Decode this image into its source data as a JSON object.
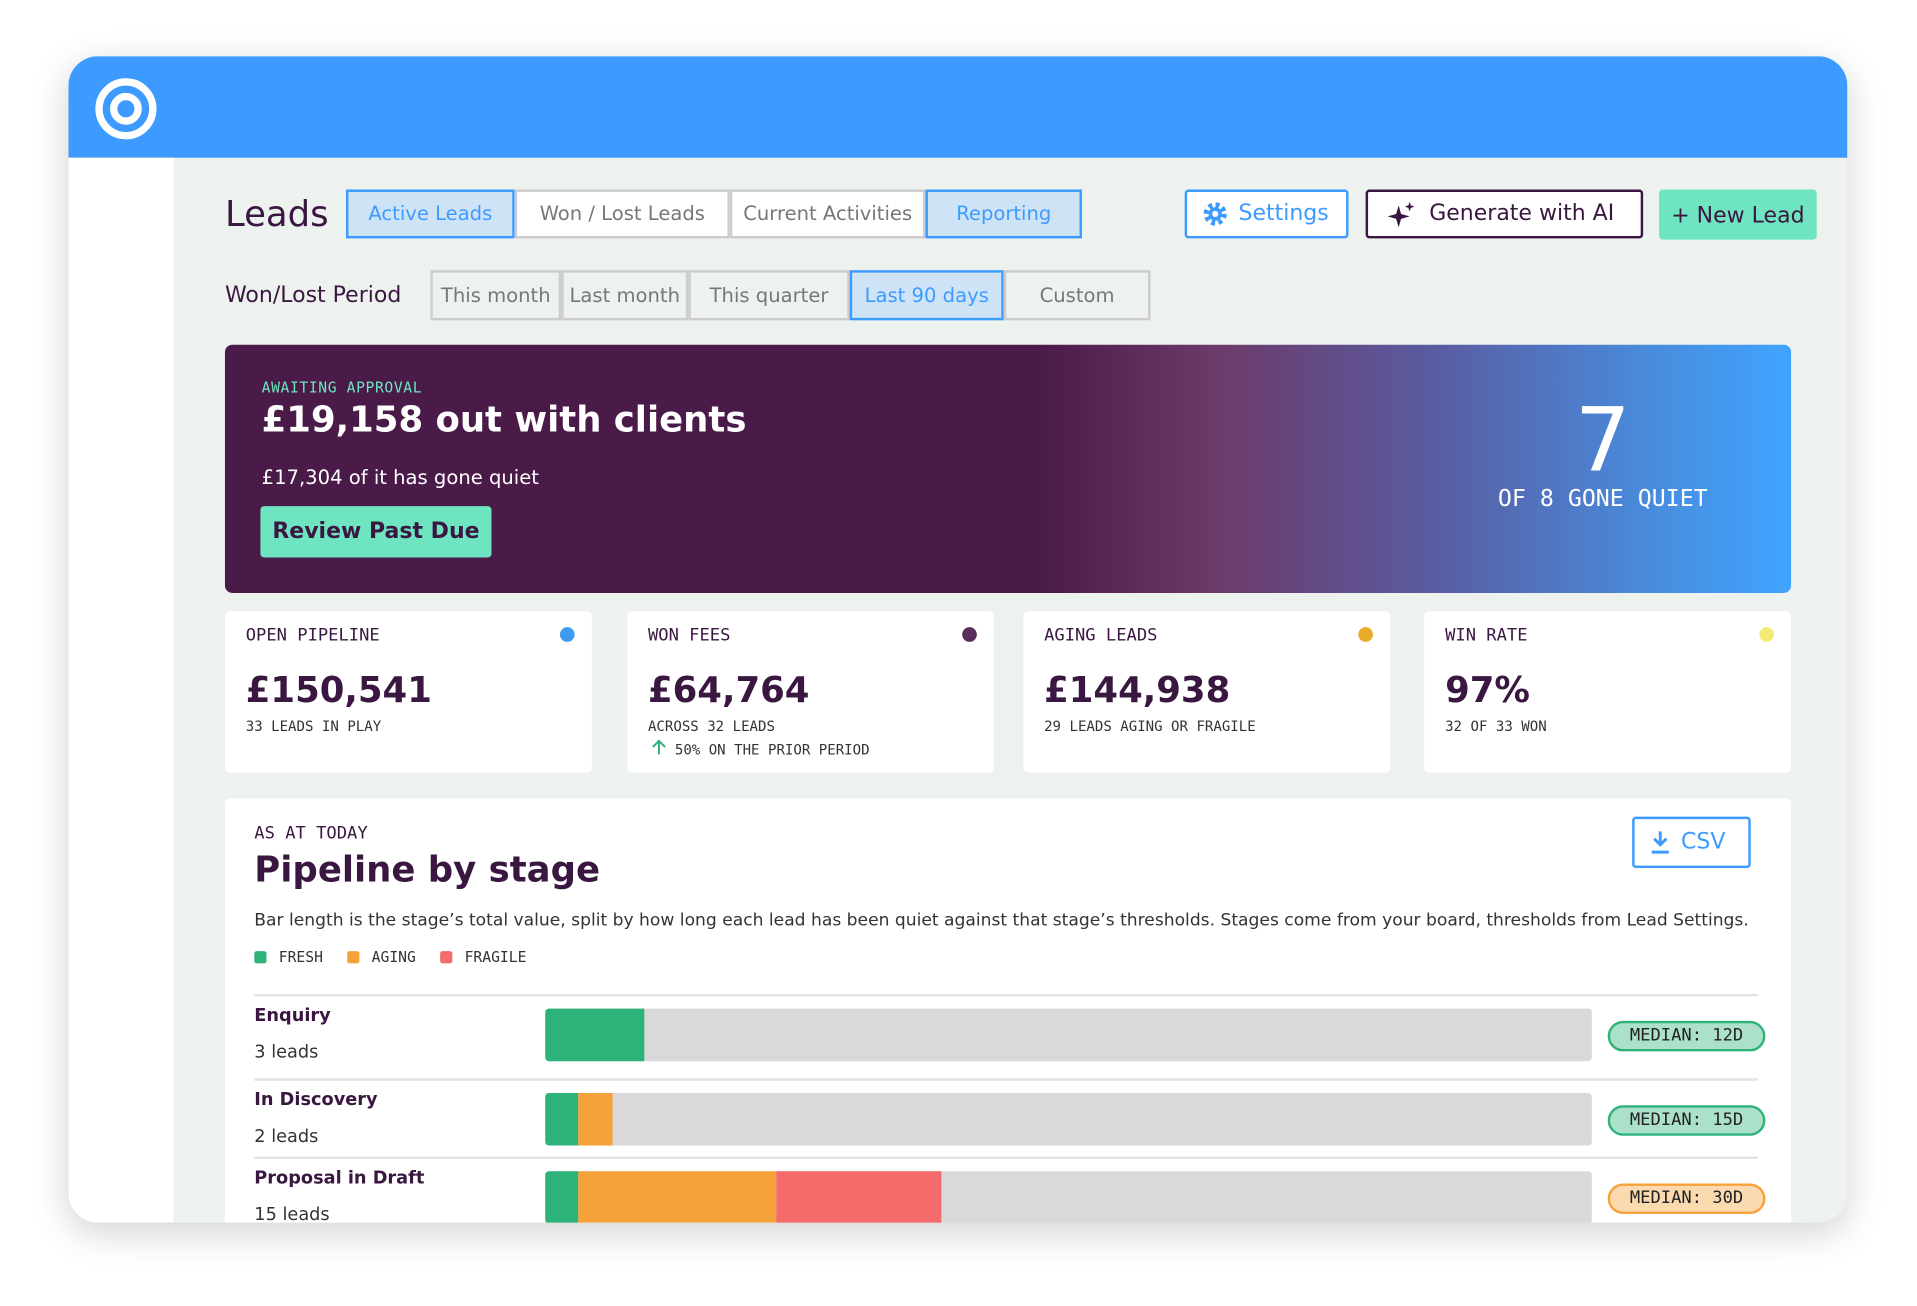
{
  "header": {
    "title": "Leads",
    "tabs": [
      {
        "label": "Active Leads",
        "active": true
      },
      {
        "label": "Won / Lost Leads",
        "active": false
      },
      {
        "label": "Current Activities",
        "active": false
      },
      {
        "label": "Reporting",
        "active": true
      }
    ],
    "buttons": {
      "settings": "Settings",
      "generate": "Generate with AI",
      "new_lead": "+ New Lead"
    }
  },
  "period": {
    "label": "Won/Lost Period",
    "options": [
      {
        "label": "This month",
        "active": false
      },
      {
        "label": "Last month",
        "active": false
      },
      {
        "label": "This quarter",
        "active": false
      },
      {
        "label": "Last 90 days",
        "active": true
      },
      {
        "label": "Custom",
        "active": false
      }
    ]
  },
  "banner": {
    "eyebrow": "AWAITING APPROVAL",
    "title": "£19,158 out with clients",
    "subtitle": "£17,304 of it has gone quiet",
    "button": "Review Past Due",
    "count": 7,
    "count_caption": "OF 8 GONE QUIET"
  },
  "kpis": [
    {
      "label": "OPEN PIPELINE",
      "value": "£150,541",
      "note": "33 LEADS IN PLAY",
      "color": "#3d9bf0"
    },
    {
      "label": "WON FEES",
      "value": "£64,764",
      "note": "ACROSS 32 LEADS",
      "change": "50% ON THE PRIOR PERIOD",
      "color": "#5a2e5c"
    },
    {
      "label": "AGING LEADS",
      "value": "£144,938",
      "note": "29 LEADS AGING OR FRAGILE",
      "color": "#eaaa2a"
    },
    {
      "label": "WIN RATE",
      "value": "97%",
      "note": "32 OF 33 WON",
      "color": "#f3ea78"
    }
  ],
  "pipeline": {
    "eyebrow": "AS AT TODAY",
    "title": "Pipeline by stage",
    "button": "CSV",
    "description": "Bar length is the stage’s total value, split by how long each lead has been quiet against that stage’s thresholds. Stages come from your board, thresholds from Lead Settings.",
    "legend": [
      {
        "name": "FRESH",
        "color": "#2db37a"
      },
      {
        "name": "AGING",
        "color": "#f6a23a"
      },
      {
        "name": "FRAGILE",
        "color": "#f56a6a"
      }
    ],
    "xlim": [
      0,
      100
    ],
    "stages": [
      {
        "name": "Enquiry",
        "count": "3 leads",
        "values": [
          9.5,
          0,
          0
        ],
        "median": "MEDIAN: 12D",
        "median_color": "#2db37a"
      },
      {
        "name": "In Discovery",
        "count": "2 leads",
        "values": [
          3.2,
          3.2,
          0
        ],
        "median": "MEDIAN: 15D",
        "median_color": "#2db37a"
      },
      {
        "name": "Proposal in Draft",
        "count": "15 leads",
        "values": [
          3.2,
          18.9,
          15.8
        ],
        "median": "MEDIAN: 30D",
        "median_color": "#f6a23a"
      }
    ]
  }
}
